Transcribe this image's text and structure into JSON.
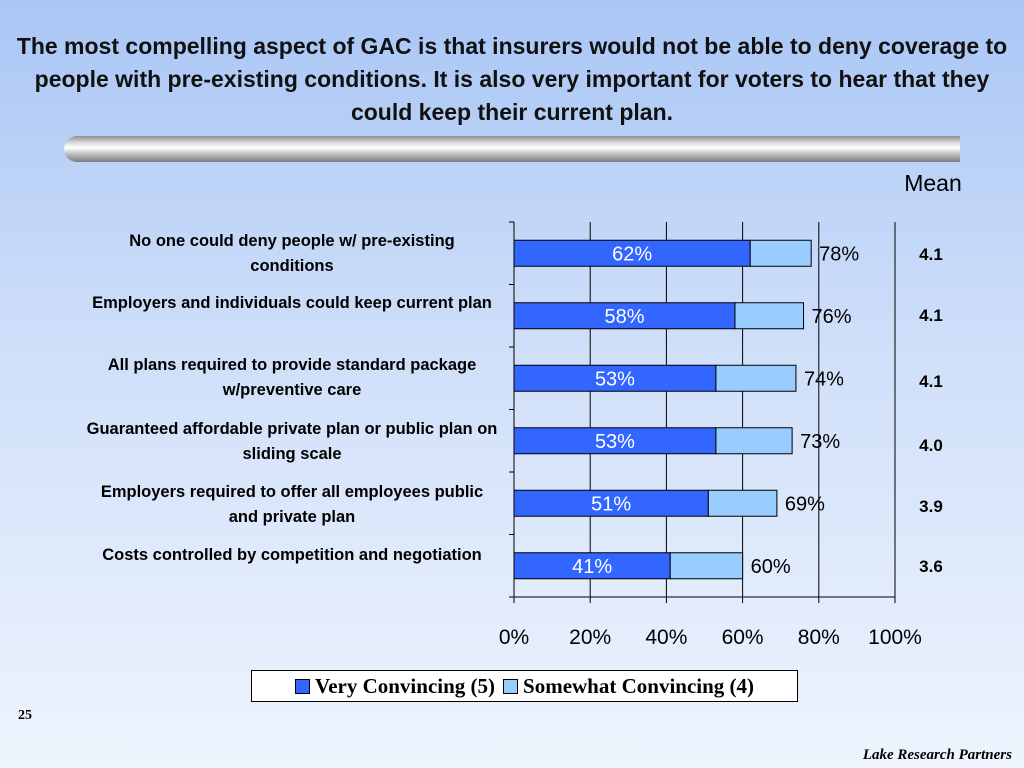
{
  "slide": {
    "title": "The most compelling aspect of GAC is that insurers would not be able to deny coverage to people with pre-existing conditions.  It is also very important for voters to hear that they could keep their current plan.",
    "mean_header": "Mean",
    "page_number": "25",
    "footer": "Lake Research Partners"
  },
  "colors": {
    "very": "#3366ff",
    "somewhat": "#99ccff"
  },
  "chart_data": {
    "type": "bar",
    "orientation": "horizontal",
    "stacked": true,
    "categories": [
      "No one could deny people w/ pre-existing conditions",
      "Employers and individuals could keep current plan",
      "All plans required to provide standard package w/preventive care",
      "Guaranteed affordable private plan or public plan on sliding scale",
      "Employers required to offer all employees public and private plan",
      "Costs controlled by competition and negotiation"
    ],
    "series": [
      {
        "name": "Very Convincing (5)",
        "values": [
          62,
          58,
          53,
          53,
          51,
          41
        ]
      },
      {
        "name": "Somewhat Convincing (4)",
        "values": [
          16,
          18,
          21,
          20,
          18,
          19
        ]
      }
    ],
    "inner_labels": [
      "62%",
      "58%",
      "53%",
      "53%",
      "51%",
      "41%"
    ],
    "total_labels": [
      "78%",
      "76%",
      "74%",
      "73%",
      "69%",
      "60%"
    ],
    "means": [
      "4.1",
      "4.1",
      "4.1",
      "4.0",
      "3.9",
      "3.6"
    ],
    "xticks": [
      "0%",
      "20%",
      "40%",
      "60%",
      "80%",
      "100%"
    ],
    "xlim": [
      0,
      100
    ],
    "legend": "bottom",
    "grid": true
  }
}
